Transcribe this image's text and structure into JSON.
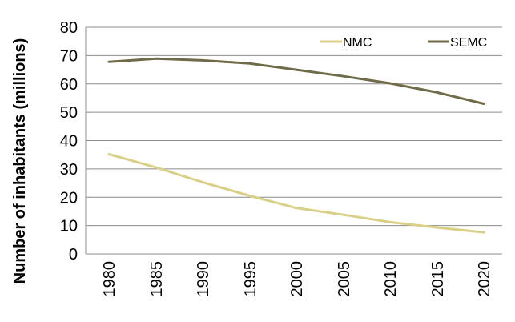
{
  "chart_data": {
    "type": "line",
    "title": "",
    "xlabel": "",
    "ylabel": "Number of inhabitants (millions)",
    "x": [
      "1980",
      "1985",
      "1990",
      "1995",
      "2000",
      "2005",
      "2010",
      "2015",
      "2020"
    ],
    "ylim": [
      0,
      80
    ],
    "yticks": [
      "0",
      "10",
      "20",
      "30",
      "40",
      "50",
      "60",
      "70",
      "80"
    ],
    "grid": true,
    "legend_position": "top-right",
    "series": [
      {
        "name": "NMC",
        "color": "#d9cf86",
        "values": [
          35.2,
          30.5,
          25.3,
          20.5,
          16.2,
          13.8,
          11.2,
          9.3,
          7.6
        ]
      },
      {
        "name": "SEMC",
        "color": "#6f6a47",
        "values": [
          67.8,
          68.9,
          68.3,
          67.2,
          65.0,
          62.7,
          60.2,
          57.0,
          53.0
        ]
      }
    ]
  }
}
